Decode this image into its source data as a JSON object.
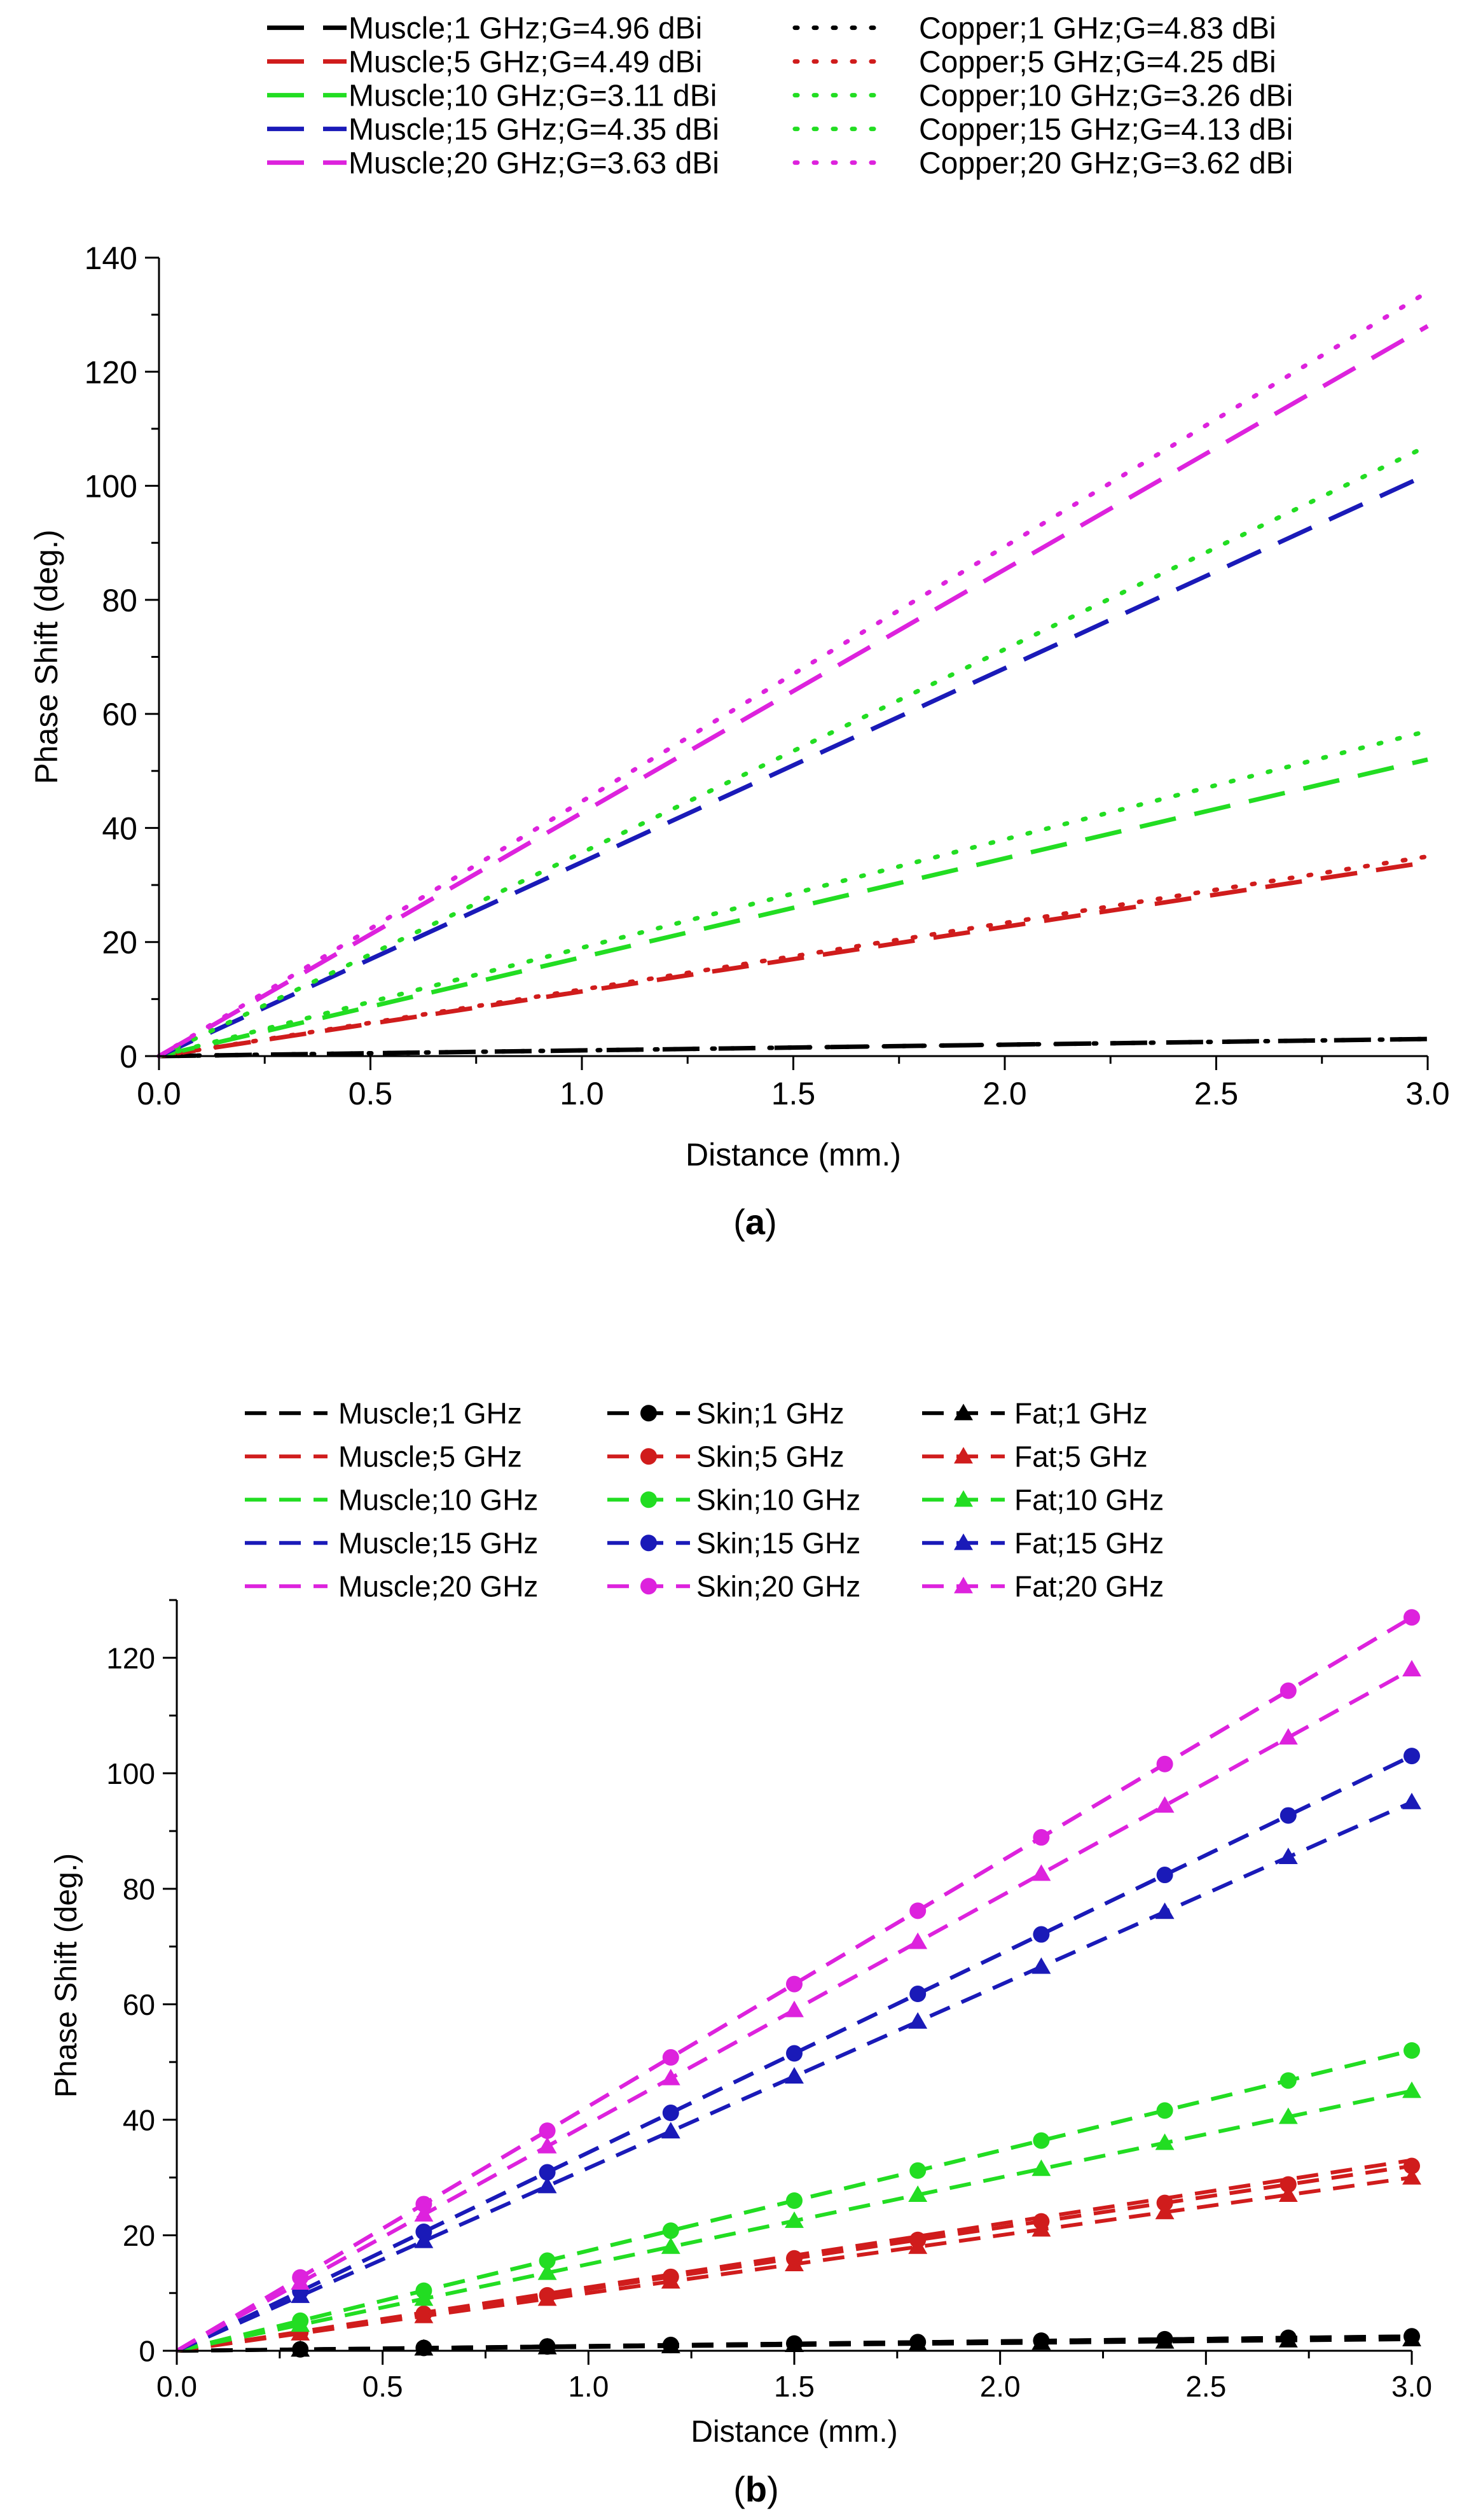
{
  "chart_data": [
    {
      "id": "a",
      "type": "line",
      "panel_label": "a",
      "xlabel": "Distance (mm.)",
      "ylabel": "Phase Shift (deg.)",
      "xlim": [
        0,
        3
      ],
      "ylim": [
        0,
        140
      ],
      "xticks": [
        0.0,
        0.5,
        1.0,
        1.5,
        2.0,
        2.5,
        3.0
      ],
      "yticks": [
        0,
        20,
        40,
        60,
        80,
        100,
        120,
        140
      ],
      "grid": false,
      "legend_position": "top",
      "series": [
        {
          "name": "Muscle;1 GHz;G=4.96 dBi",
          "color": "#000000",
          "style": "dash",
          "x": [
            0,
            3
          ],
          "y": [
            0,
            3
          ]
        },
        {
          "name": "Muscle;5 GHz;G=4.49 dBi",
          "color": "#d01c1c",
          "style": "dash",
          "x": [
            0,
            3
          ],
          "y": [
            0,
            34
          ]
        },
        {
          "name": "Muscle;10 GHz;G=3.11 dBi",
          "color": "#22dd22",
          "style": "dash",
          "x": [
            0,
            3
          ],
          "y": [
            0,
            52
          ]
        },
        {
          "name": "Muscle;15 GHz;G=4.35 dBi",
          "color": "#1a1ab8",
          "style": "dash",
          "x": [
            0,
            3
          ],
          "y": [
            0,
            102
          ]
        },
        {
          "name": "Muscle;20 GHz;G=3.63 dBi",
          "color": "#dd22dd",
          "style": "dash",
          "x": [
            0,
            3
          ],
          "y": [
            0,
            128
          ]
        },
        {
          "name": "Copper;1 GHz;G=4.83 dBi",
          "color": "#000000",
          "style": "dot",
          "x": [
            0,
            3
          ],
          "y": [
            0,
            3
          ]
        },
        {
          "name": "Copper;5 GHz;G=4.25 dBi",
          "color": "#d01c1c",
          "style": "dot",
          "x": [
            0,
            3
          ],
          "y": [
            0,
            35
          ]
        },
        {
          "name": "Copper;10 GHz;G=3.26 dBi",
          "color": "#22dd22",
          "style": "dot",
          "x": [
            0,
            3
          ],
          "y": [
            0,
            57
          ]
        },
        {
          "name": "Copper;15 GHz;G=4.13 dBi",
          "color": "#22dd22",
          "style": "dot",
          "x": [
            0,
            3
          ],
          "y": [
            0,
            107
          ]
        },
        {
          "name": "Copper;20 GHz;G=3.62 dBi",
          "color": "#dd22dd",
          "style": "dot",
          "x": [
            0,
            3
          ],
          "y": [
            0,
            134
          ]
        }
      ]
    },
    {
      "id": "b",
      "type": "line",
      "panel_label": "b",
      "xlabel": "Distance (mm.)",
      "ylabel": "Phase Shift (deg.)",
      "xlim": [
        0,
        3
      ],
      "ylim": [
        0,
        130
      ],
      "xticks": [
        0.0,
        0.5,
        1.0,
        1.5,
        2.0,
        2.5,
        3.0
      ],
      "yticks": [
        0,
        20,
        40,
        60,
        80,
        100,
        120
      ],
      "grid": false,
      "legend_position": "top",
      "marker_x": [
        0.3,
        0.6,
        0.9,
        1.2,
        1.5,
        1.8,
        2.1,
        2.4,
        2.7,
        3.0
      ],
      "series": [
        {
          "name": "Muscle;1 GHz",
          "color": "#000000",
          "style": "dash",
          "marker": "none",
          "x": [
            0,
            3
          ],
          "y": [
            0,
            2.5
          ]
        },
        {
          "name": "Muscle;5 GHz",
          "color": "#d01c1c",
          "style": "dash",
          "marker": "none",
          "x": [
            0,
            3
          ],
          "y": [
            0,
            33
          ]
        },
        {
          "name": "Muscle;10 GHz",
          "color": "#22dd22",
          "style": "dash",
          "marker": "none",
          "x": [
            0,
            3
          ],
          "y": [
            0,
            52
          ]
        },
        {
          "name": "Muscle;15 GHz",
          "color": "#1a1ab8",
          "style": "dash",
          "marker": "none",
          "x": [
            0,
            3
          ],
          "y": [
            0,
            103
          ]
        },
        {
          "name": "Muscle;20 GHz",
          "color": "#dd22dd",
          "style": "dash",
          "marker": "none",
          "x": [
            0,
            3
          ],
          "y": [
            0,
            127
          ]
        },
        {
          "name": "Skin;1 GHz",
          "color": "#000000",
          "style": "dash",
          "marker": "circle",
          "x": [
            0,
            3
          ],
          "y": [
            0,
            2.5
          ]
        },
        {
          "name": "Skin;5 GHz",
          "color": "#d01c1c",
          "style": "dash",
          "marker": "circle",
          "x": [
            0,
            3
          ],
          "y": [
            0,
            32
          ]
        },
        {
          "name": "Skin;10 GHz",
          "color": "#22dd22",
          "style": "dash",
          "marker": "circle",
          "x": [
            0,
            3
          ],
          "y": [
            0,
            52
          ]
        },
        {
          "name": "Skin;15 GHz",
          "color": "#1a1ab8",
          "style": "dash",
          "marker": "circle",
          "x": [
            0,
            3
          ],
          "y": [
            0,
            103
          ]
        },
        {
          "name": "Skin;20 GHz",
          "color": "#dd22dd",
          "style": "dash",
          "marker": "circle",
          "x": [
            0,
            3
          ],
          "y": [
            0,
            127
          ]
        },
        {
          "name": "Fat;1 GHz",
          "color": "#000000",
          "style": "dash",
          "marker": "triangle",
          "x": [
            0,
            3
          ],
          "y": [
            0,
            2
          ]
        },
        {
          "name": "Fat;5 GHz",
          "color": "#d01c1c",
          "style": "dash",
          "marker": "triangle",
          "x": [
            0,
            3
          ],
          "y": [
            0,
            30
          ]
        },
        {
          "name": "Fat;10 GHz",
          "color": "#22dd22",
          "style": "dash",
          "marker": "triangle",
          "x": [
            0,
            3
          ],
          "y": [
            0,
            45
          ]
        },
        {
          "name": "Fat;15 GHz",
          "color": "#1a1ab8",
          "style": "dash",
          "marker": "triangle",
          "x": [
            0,
            3
          ],
          "y": [
            0,
            95
          ]
        },
        {
          "name": "Fat;20 GHz",
          "color": "#dd22dd",
          "style": "dash",
          "marker": "triangle",
          "x": [
            0,
            3
          ],
          "y": [
            0,
            118
          ]
        }
      ]
    }
  ]
}
